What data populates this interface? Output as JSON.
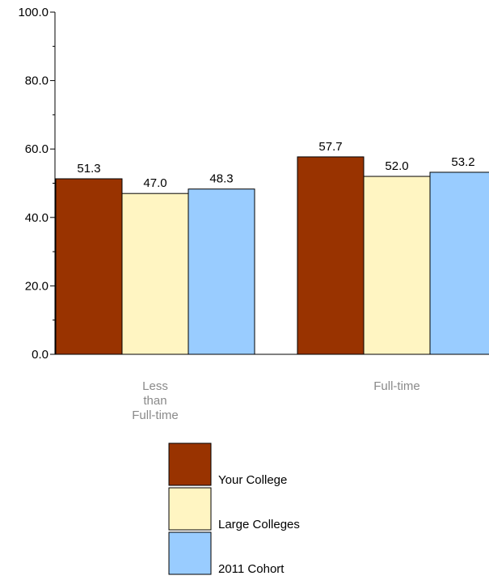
{
  "chart_data": {
    "type": "bar",
    "title": "",
    "xlabel": "",
    "ylabel": "",
    "ylim": [
      0,
      100
    ],
    "yticks": [
      0,
      20,
      40,
      60,
      80,
      100
    ],
    "ytick_labels": [
      "0.0",
      "20.0",
      "40.0",
      "60.0",
      "80.0",
      "100.0"
    ],
    "grid": false,
    "legend_position": "bottom",
    "categories": [
      {
        "name": "Less than Full-time",
        "lines": [
          "Less",
          "than",
          "Full-time"
        ]
      },
      {
        "name": "Full-time",
        "lines": [
          "Full-time"
        ]
      }
    ],
    "series": [
      {
        "name": "Your College",
        "color": "#993300",
        "values": [
          51.3,
          57.7
        ],
        "labels": [
          "51.3",
          "57.7"
        ]
      },
      {
        "name": "Large Colleges",
        "color": "#FFF5C2",
        "values": [
          47.0,
          52.0
        ],
        "labels": [
          "47.0",
          "52.0"
        ]
      },
      {
        "name": "2011 Cohort",
        "color": "#99CCFF",
        "values": [
          48.3,
          53.2
        ],
        "labels": [
          "48.3",
          "53.2"
        ]
      }
    ]
  }
}
